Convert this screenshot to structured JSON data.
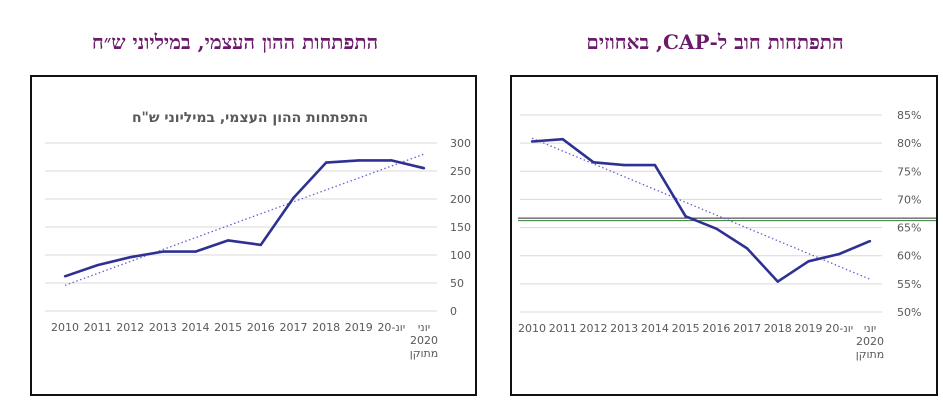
{
  "headings": {
    "left": "התפתחות ההון העצמי, במיליוני ש״ח",
    "right": "התפתחות חוב ל-CAP, באחוזים"
  },
  "colors": {
    "heading": "#6b1a6b",
    "series": "#2e3192",
    "trend": "#6b5fd6",
    "grid": "#d9d9d9",
    "text": "#595959"
  },
  "chart_data": [
    {
      "type": "line",
      "title": "התפתחות ההון העצמי, במיליוני ש\"ח",
      "categories": [
        "2010",
        "2011",
        "2012",
        "2013",
        "2014",
        "2015",
        "2016",
        "2017",
        "2018",
        "2019",
        "יונ-20",
        "יוני 2020 מתוקן"
      ],
      "category_lines": [
        [
          "2010"
        ],
        [
          "2011"
        ],
        [
          "2012"
        ],
        [
          "2013"
        ],
        [
          "2014"
        ],
        [
          "2015"
        ],
        [
          "2016"
        ],
        [
          "2017"
        ],
        [
          "2018"
        ],
        [
          "2019"
        ],
        [
          "יונ-20"
        ],
        [
          "יוני",
          "2020",
          "מתוקן"
        ]
      ],
      "values": [
        62,
        82,
        96,
        106,
        106,
        126,
        118,
        202,
        265,
        269,
        269,
        255
      ],
      "trendline": "linear",
      "yticks": [
        "0",
        "50",
        "100",
        "150",
        "200",
        "250",
        "300"
      ],
      "ylim": [
        0,
        300
      ],
      "y_axis_side": "right",
      "grid": true
    },
    {
      "type": "line",
      "title": "",
      "categories": [
        "2010",
        "2011",
        "2012",
        "2013",
        "2014",
        "2015",
        "2016",
        "2017",
        "2018",
        "2019",
        "יונ-20",
        "יוני 2020 מתוקן"
      ],
      "category_lines": [
        [
          "2010"
        ],
        [
          "2011"
        ],
        [
          "2012"
        ],
        [
          "2013"
        ],
        [
          "2014"
        ],
        [
          "2015"
        ],
        [
          "2016"
        ],
        [
          "2017"
        ],
        [
          "2018"
        ],
        [
          "2019"
        ],
        [
          "יונ-20"
        ],
        [
          "יוני",
          "2020",
          "מתוקן"
        ]
      ],
      "values": [
        80.3,
        80.7,
        76.6,
        76.1,
        76.1,
        67.0,
        64.8,
        61.3,
        55.4,
        59.0,
        60.3,
        62.6
      ],
      "trendline": "linear",
      "reference_line": 66.5,
      "yticks": [
        "50%",
        "55%",
        "60%",
        "65%",
        "70%",
        "75%",
        "80%",
        "85%"
      ],
      "ylim": [
        50,
        85
      ],
      "y_axis_side": "right",
      "grid": true
    }
  ]
}
